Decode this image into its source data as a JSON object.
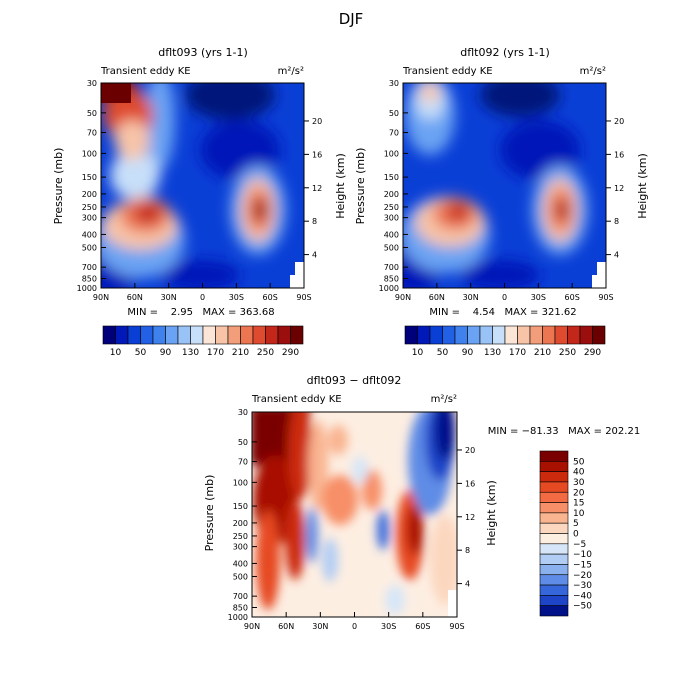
{
  "figure_title": "DJF",
  "chart_data": [
    {
      "type": "heatmap",
      "title": "dflt093 (yrs 1-1)",
      "subtitle_left": "Transient eddy KE",
      "units": "m²/s²",
      "ylabel": "Pressure (mb)",
      "ylabel_right": "Height (km)",
      "x_ticks": [
        "90N",
        "60N",
        "30N",
        "0",
        "30S",
        "60S",
        "90S"
      ],
      "y_ticks": [
        "30",
        "50",
        "70",
        "100",
        "150",
        "200",
        "250",
        "300",
        "400",
        "500",
        "700",
        "850",
        "1000"
      ],
      "height_ticks": [
        "4",
        "8",
        "12",
        "16",
        "20"
      ],
      "stats_text": "MIN =    2.95   MAX = 363.68",
      "colorbar_labels": [
        "10",
        "50",
        "90",
        "130",
        "170",
        "210",
        "250",
        "290"
      ],
      "colorbar_colors": [
        "#00007a",
        "#0019b8",
        "#0a3fd6",
        "#2261e6",
        "#3f82ee",
        "#6aa3f3",
        "#99c3f6",
        "#c7dff9",
        "#fbe5d6",
        "#f7c4a8",
        "#f29e7b",
        "#ec7552",
        "#df4b2e",
        "#c3271a",
        "#9b0e0e",
        "#6b0000"
      ],
      "features": [
        {
          "lat": 72,
          "p": 30,
          "value": 330
        },
        {
          "lat": 40,
          "p": 280,
          "value": 300
        },
        {
          "lat": -48,
          "p": 270,
          "value": 360
        }
      ]
    },
    {
      "type": "heatmap",
      "title": "dflt092 (yrs 1-1)",
      "subtitle_left": "Transient eddy KE",
      "units": "m²/s²",
      "ylabel": "Pressure (mb)",
      "ylabel_right": "Height (km)",
      "x_ticks": [
        "90N",
        "60N",
        "30N",
        "0",
        "30S",
        "60S",
        "90S"
      ],
      "y_ticks": [
        "30",
        "50",
        "70",
        "100",
        "150",
        "200",
        "250",
        "300",
        "400",
        "500",
        "700",
        "850",
        "1000"
      ],
      "height_ticks": [
        "4",
        "8",
        "12",
        "16",
        "20"
      ],
      "stats_text": "MIN =    4.54   MAX = 321.62",
      "colorbar_labels": [
        "10",
        "50",
        "90",
        "130",
        "170",
        "210",
        "250",
        "290"
      ],
      "colorbar_colors": [
        "#00007a",
        "#0019b8",
        "#0a3fd6",
        "#2261e6",
        "#3f82ee",
        "#6aa3f3",
        "#99c3f6",
        "#c7dff9",
        "#fbe5d6",
        "#f7c4a8",
        "#f29e7b",
        "#ec7552",
        "#df4b2e",
        "#c3271a",
        "#9b0e0e",
        "#6b0000"
      ],
      "features": [
        {
          "lat": 68,
          "p": 30,
          "value": 200
        },
        {
          "lat": 38,
          "p": 280,
          "value": 290
        },
        {
          "lat": -50,
          "p": 270,
          "value": 320
        }
      ]
    },
    {
      "type": "heatmap",
      "title": "dflt093 − dflt092",
      "subtitle_left": "Transient eddy KE",
      "units": "m²/s²",
      "ylabel": "Pressure (mb)",
      "ylabel_right": "Height (km)",
      "x_ticks": [
        "90N",
        "60N",
        "30N",
        "0",
        "30S",
        "60S",
        "90S"
      ],
      "y_ticks": [
        "30",
        "50",
        "70",
        "100",
        "150",
        "200",
        "250",
        "300",
        "400",
        "500",
        "700",
        "850",
        "1000"
      ],
      "height_ticks": [
        "4",
        "8",
        "12",
        "16",
        "20"
      ],
      "stats_text": "MIN = −81.33   MAX = 202.21",
      "colorbar_labels": [
        "50",
        "40",
        "30",
        "20",
        "15",
        "10",
        "5",
        "0",
        "−5",
        "−10",
        "−15",
        "−20",
        "−30",
        "−40",
        "−50"
      ],
      "colorbar_colors": [
        "#7a0000",
        "#a81000",
        "#cc2a0c",
        "#e64a22",
        "#f36b42",
        "#f78f68",
        "#f9b490",
        "#fcd7bf",
        "#fdeee2",
        "#d6e6f8",
        "#b2cdf4",
        "#8ab0ee",
        "#5f8ce6",
        "#3567db",
        "#1e45c8",
        "#00118a"
      ]
    }
  ]
}
